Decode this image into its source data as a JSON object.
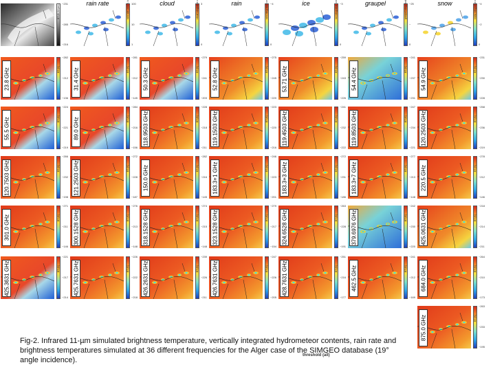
{
  "figure": {
    "column_titles": [
      "rain rate",
      "cloud",
      "rain",
      "ice",
      "graupel",
      "snow"
    ],
    "top_row": [
      {
        "kind": "ir",
        "unit": "BT (K, 11 µm)",
        "ticks": [
          "~231",
          "~285",
          "~216"
        ]
      },
      {
        "kind": "rain_rate",
        "unit": "rain rate (mm/h, log scale)",
        "ticks": [
          "100",
          "10",
          "1"
        ]
      },
      {
        "kind": "cloud",
        "unit": "cloud integrated content (kg/m²)",
        "ticks": [
          "3",
          "",
          "0"
        ]
      },
      {
        "kind": "rain",
        "unit": "rain integrated content (kg/m²)",
        "ticks": [
          "~4",
          "",
          "0"
        ]
      },
      {
        "kind": "ice",
        "unit": "ice integrated content (kg/m²)",
        "ticks": [
          "~3",
          "",
          "0"
        ]
      },
      {
        "kind": "graupel",
        "unit": "graupel integrated content (kg/m²)",
        "ticks": [
          "~25",
          "~",
          "0"
        ]
      },
      {
        "kind": "snow",
        "unit": "snow integrated content (kg/m²)",
        "ticks": [
          "~4",
          "~2",
          "0"
        ]
      }
    ],
    "tb_unit": "BT (K)",
    "frequencies": [
      {
        "label": "23.8 GHz",
        "ticks": [
          "~282",
          "~212",
          "~136"
        ],
        "style": "low"
      },
      {
        "label": "31.4 GHz",
        "ticks": [
          "~281",
          "~212",
          "~145"
        ],
        "style": "low"
      },
      {
        "label": "50.3 GHz",
        "ticks": [
          "~279",
          "~241",
          "~203"
        ],
        "style": "low"
      },
      {
        "label": "52.8 GHz",
        "ticks": [
          "~275",
          "~245",
          "~220"
        ],
        "style": "mid"
      },
      {
        "label": "53.71 GHz",
        "ticks": [
          "~259",
          "~243",
          "~226"
        ],
        "style": "mid"
      },
      {
        "label": "54.4 GHz",
        "ticks": [
          "~241",
          "~237",
          "~231"
        ],
        "style": "cold"
      },
      {
        "label": "54.9 GHz",
        "ticks": [
          "~231",
          "~230",
          "~228"
        ],
        "style": "mid"
      },
      {
        "label": "55.5 GHz",
        "ticks": [
          "~224",
          "~221",
          "~219"
        ],
        "style": "low"
      },
      {
        "label": "89.0 GHz",
        "ticks": [
          "~284",
          "~216",
          "~156"
        ],
        "style": "low"
      },
      {
        "label": "118.9503 GHz",
        "ticks": [
          "~228",
          "~218",
          "~211"
        ],
        "style": "warm"
      },
      {
        "label": "119.1503 GHz",
        "ticks": [
          "~223",
          "~220",
          "~216"
        ],
        "style": "warm"
      },
      {
        "label": "119.4503 GHz",
        "ticks": [
          "~241",
          "~232",
          "~222"
        ],
        "style": "warm"
      },
      {
        "label": "119.8503 GHz",
        "ticks": [
          "~247",
          "~234",
          "~221"
        ],
        "style": "warm"
      },
      {
        "label": "120.2503 GHz",
        "ticks": [
          "~258",
          "~236",
          "~219"
        ],
        "style": "warm"
      },
      {
        "label": "120.7503 GHz",
        "ticks": [
          "~266",
          "~232",
          "~198"
        ],
        "style": "warm"
      },
      {
        "label": "121.2503 GHz",
        "ticks": [
          "~272",
          "~228",
          "~187"
        ],
        "style": "warm"
      },
      {
        "label": "150.0 GHz",
        "ticks": [
          "~282",
          "~216",
          "~145"
        ],
        "style": "warm"
      },
      {
        "label": "183.3+1 GHz",
        "ticks": [
          "~246",
          "~223",
          "~201"
        ],
        "style": "warm"
      },
      {
        "label": "183.3+3 GHz",
        "ticks": [
          "~272",
          "~231",
          "~186"
        ],
        "style": "warm"
      },
      {
        "label": "183.3+7 GHz",
        "ticks": [
          "~277",
          "~213",
          "~148"
        ],
        "style": "warm"
      },
      {
        "label": "220.5 GHz",
        "ticks": [
          "~278",
          "~212",
          "~146"
        ],
        "style": "warm"
      },
      {
        "label": "301.0 GHz",
        "ticks": [
          "~271",
          "~211",
          "~146"
        ],
        "style": "warm"
      },
      {
        "label": "300.1528 GHz",
        "ticks": [
          "~276",
          "~213",
          "~148"
        ],
        "style": "warm"
      },
      {
        "label": "318.1528 GHz",
        "ticks": [
          "~274",
          "~215",
          "~148"
        ],
        "style": "warm"
      },
      {
        "label": "323.1528 GHz",
        "ticks": [
          "~279",
          "~217",
          "~154"
        ],
        "style": "warm"
      },
      {
        "label": "324.6528 GHz",
        "ticks": [
          "~263",
          "~228",
          "~191"
        ],
        "style": "warm"
      },
      {
        "label": "379.6976 GHz",
        "ticks": [
          "~242",
          "~230",
          "~220"
        ],
        "style": "cold"
      },
      {
        "label": "425.0631 GHz",
        "ticks": [
          "~218",
          "~214",
          "~211"
        ],
        "style": "mid"
      },
      {
        "label": "425.3631 GHz",
        "ticks": [
          "~221",
          "~217",
          "~214"
        ],
        "style": "low"
      },
      {
        "label": "425.7631 GHz",
        "ticks": [
          "~226",
          "~222",
          "~218"
        ],
        "style": "warm"
      },
      {
        "label": "426.2631 GHz",
        "ticks": [
          "~239",
          "~226",
          "~211"
        ],
        "style": "warm"
      },
      {
        "label": "426.7631 GHz",
        "ticks": [
          "~247",
          "~226",
          "~205"
        ],
        "style": "warm"
      },
      {
        "label": "428.7631 GHz",
        "ticks": [
          "~251",
          "~216",
          "~177"
        ],
        "style": "warm"
      },
      {
        "label": "462.5 GHz",
        "ticks": [
          "~241",
          "~212",
          "~169"
        ],
        "style": "warm"
      },
      {
        "label": "684.0 GHz",
        "ticks": [
          "~264",
          "~210",
          "~173"
        ],
        "style": "warm"
      },
      {
        "label": "875.0 GHz",
        "ticks": [
          "~263",
          "~233",
          "~195"
        ],
        "style": "warm"
      }
    ]
  },
  "caption": "Fig-2. Infrared 11-µm simulated brightness temperature, vertically integrated hydrometeor contents, rain rate and brightness temperatures simulated at 36 different frequencies for the Alger case of the SIMGEO database (19° angle incidence).",
  "threshold_label": "threshold (all)",
  "colors": {
    "warm": "#e43a1a",
    "cold": "#2a5fd6",
    "cyan": "#3fd6e8",
    "yellow": "#f5d22a"
  }
}
